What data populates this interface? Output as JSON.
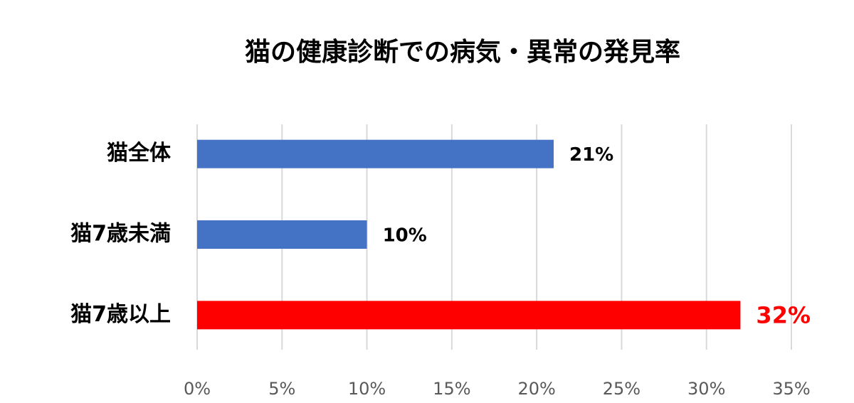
{
  "chart_data": {
    "type": "hbar",
    "title": "猫の健康診断での病気・異常の発見率",
    "categories": [
      "猫全体",
      "猫7歳未満",
      "猫7歳以上"
    ],
    "values": [
      21,
      10,
      32
    ],
    "value_labels": [
      "21%",
      "10%",
      "32%"
    ],
    "colors": [
      "#4472c4",
      "#4472c4",
      "#ff0000"
    ],
    "value_label_colors": [
      "#000000",
      "#000000",
      "#ff0000"
    ],
    "xlim": [
      0,
      35
    ],
    "xticks": [
      {
        "value": 0,
        "label": "0%"
      },
      {
        "value": 5,
        "label": "5%"
      },
      {
        "value": 10,
        "label": "10%"
      },
      {
        "value": 15,
        "label": "15%"
      },
      {
        "value": 20,
        "label": "20%"
      },
      {
        "value": 25,
        "label": "25%"
      },
      {
        "value": 30,
        "label": "30%"
      },
      {
        "value": 35,
        "label": "35%"
      }
    ],
    "grid": true
  }
}
